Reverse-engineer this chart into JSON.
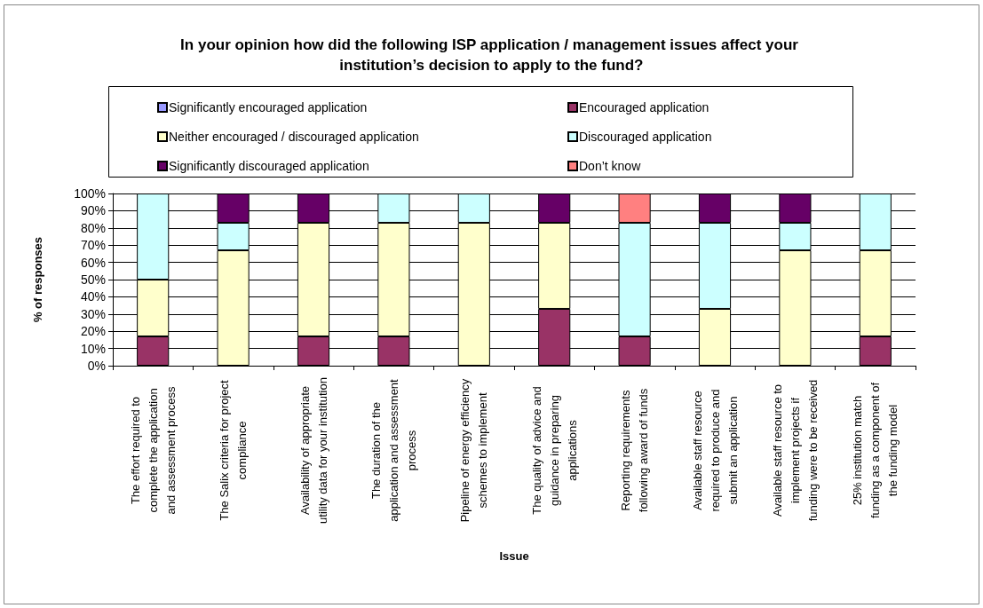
{
  "chart_data": {
    "type": "bar",
    "stacked": true,
    "title": "In your opinion how did the following ISP application / management issues affect your institution’s decision to apply to the fund?",
    "xlabel": "Issue",
    "ylabel": "% of responses",
    "categories": [
      "The effort required to complete the application and assessment process",
      "The Salix criteria for project compliance",
      "Availability of appropriate utility data for your institution",
      "The duration of the application and assessment process",
      "Pipeline of energy efficiency schemes to implement",
      "The quality of advice and guidance in preparing applications",
      "Reporting requirements following award of funds",
      "Available staff resource required to produce and submit an application",
      "Available staff resource to implement projects if funding were to be received",
      "25% institution match funding as a component of the funding model"
    ],
    "series": [
      {
        "name": "Significantly encouraged application",
        "color": "#9999ff",
        "values": [
          null,
          null,
          null,
          null,
          null,
          null,
          null,
          null,
          null,
          null
        ]
      },
      {
        "name": "Encouraged application",
        "color": "#993366",
        "values": [
          17,
          null,
          17,
          17,
          null,
          33,
          17,
          null,
          null,
          17
        ]
      },
      {
        "name": "Neither encouraged / discouraged application",
        "color": "#ffffcc",
        "values": [
          33,
          67,
          66,
          66,
          83,
          50,
          null,
          33,
          67,
          50
        ]
      },
      {
        "name": "Discouraged application",
        "color": "#ccffff",
        "values": [
          50,
          16,
          null,
          17,
          17,
          null,
          66,
          50,
          16,
          33
        ]
      },
      {
        "name": "Significantly discouraged application",
        "color": "#660066",
        "values": [
          null,
          17,
          17,
          null,
          null,
          17,
          null,
          17,
          17,
          null
        ]
      },
      {
        "name": "Don’t know",
        "color": "#ff8080",
        "values": [
          null,
          null,
          null,
          null,
          null,
          null,
          17,
          null,
          null,
          null
        ]
      }
    ],
    "ylim": [
      0,
      100
    ],
    "yticks": [
      {
        "value": 0,
        "label": "0%"
      },
      {
        "value": 10,
        "label": "10%"
      },
      {
        "value": 20,
        "label": "20%"
      },
      {
        "value": 30,
        "label": "30%"
      },
      {
        "value": 40,
        "label": "40%"
      },
      {
        "value": 50,
        "label": "50%"
      },
      {
        "value": 60,
        "label": "60%"
      },
      {
        "value": 70,
        "label": "70%"
      },
      {
        "value": 80,
        "label": "80%"
      },
      {
        "value": 90,
        "label": "90%"
      },
      {
        "value": 100,
        "label": "100%"
      }
    ],
    "grid": "y",
    "legend": "top"
  }
}
